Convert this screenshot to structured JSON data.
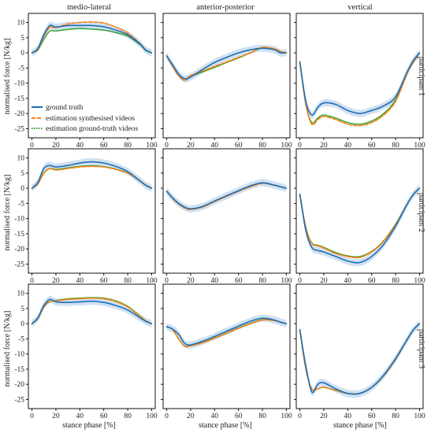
{
  "chart_data": {
    "type": "line",
    "column_titles": [
      "medio-lateral",
      "anterior-posterior",
      "vertical"
    ],
    "row_labels": [
      "participant 1",
      "participant 2",
      "participant 3"
    ],
    "xlabel": "stance phase [%]",
    "ylabel": "normalised force [N/kg]",
    "xlim": [
      -3,
      103
    ],
    "ylim": [
      -28,
      13
    ],
    "xticks": [
      0,
      20,
      40,
      60,
      80,
      100
    ],
    "yticks": [
      10,
      5,
      0,
      -5,
      -10,
      -15,
      -20,
      -25
    ],
    "grid": false,
    "legend": {
      "placement": "left-center of top-left panel",
      "entries": [
        "ground truth",
        "estimation synthesised videos",
        "estimation ground-truth videos"
      ]
    },
    "colors": {
      "ground truth": "#1f6eb4",
      "estimation synthesised videos": "#ff7f0e",
      "estimation ground-truth videos": "#2ca02c",
      "band": "#a9c9e8"
    },
    "x": [
      0,
      5,
      10,
      15,
      20,
      30,
      40,
      50,
      60,
      70,
      80,
      90,
      95,
      100
    ],
    "panels": [
      {
        "row": 1,
        "col": "medio-lateral",
        "series": [
          {
            "name": "ground truth",
            "values": [
              0,
              1.5,
              6,
              9,
              8.5,
              9,
              9,
              9,
              8.6,
              7.5,
              6,
              3,
              1,
              0
            ]
          },
          {
            "name": "estimation synthesised videos",
            "values": [
              0,
              1.2,
              5.5,
              8.4,
              8.3,
              9.5,
              10,
              10.2,
              9.8,
              8.5,
              6.5,
              3.2,
              1,
              0
            ]
          },
          {
            "name": "estimation ground-truth videos",
            "values": [
              0,
              1,
              4.5,
              7.2,
              7.2,
              7.7,
              8,
              7.8,
              7.5,
              6.7,
              5.5,
              2.8,
              0.8,
              0
            ]
          }
        ]
      },
      {
        "row": 1,
        "col": "anterior-posterior",
        "series": [
          {
            "name": "ground truth",
            "values": [
              -1,
              -4,
              -7,
              -8.5,
              -8,
              -5.5,
              -3.2,
              -1.5,
              0,
              1,
              1.5,
              1,
              0,
              0
            ]
          },
          {
            "name": "estimation synthesised videos",
            "values": [
              -1,
              -4.5,
              -7.5,
              -9,
              -7.5,
              -6,
              -4.5,
              -3,
              -1.5,
              0,
              1.8,
              1.3,
              0.5,
              0
            ]
          },
          {
            "name": "estimation ground-truth videos",
            "values": [
              -1,
              -4.5,
              -7.5,
              -9,
              -7.8,
              -6.3,
              -4.8,
              -3.2,
              -1.7,
              0,
              1.6,
              1.2,
              0.4,
              0
            ]
          }
        ]
      },
      {
        "row": 1,
        "col": "vertical",
        "series": [
          {
            "name": "ground truth",
            "values": [
              -3,
              -16,
              -20.5,
              -18,
              -16.5,
              -17,
              -19,
              -20,
              -19,
              -17.5,
              -14.5,
              -6,
              -2.5,
              0
            ]
          },
          {
            "name": "estimation synthesised videos",
            "values": [
              -3,
              -17,
              -23.5,
              -22,
              -21,
              -22,
              -23.5,
              -24,
              -23,
              -20.5,
              -16,
              -6.5,
              -3,
              0
            ]
          },
          {
            "name": "estimation ground-truth videos",
            "values": [
              -3,
              -17,
              -23,
              -21.5,
              -20.5,
              -21.5,
              -23,
              -23.5,
              -22.5,
              -20,
              -15.5,
              -6.5,
              -3,
              0
            ]
          }
        ]
      },
      {
        "row": 2,
        "col": "medio-lateral",
        "series": [
          {
            "name": "ground truth",
            "values": [
              0,
              2,
              6.5,
              7.5,
              7,
              7.5,
              8.3,
              8.7,
              8.3,
              7.2,
              5.5,
              2.5,
              1,
              0
            ]
          },
          {
            "name": "estimation synthesised videos",
            "values": [
              0,
              1.5,
              5,
              6.5,
              6,
              6.5,
              7,
              7.2,
              7,
              6.2,
              5,
              2.5,
              1,
              0
            ]
          },
          {
            "name": "estimation ground-truth videos",
            "values": [
              0,
              1.5,
              5,
              6.5,
              6.2,
              6.7,
              7.2,
              7.4,
              7.1,
              6.3,
              5,
              2.5,
              1,
              0
            ]
          }
        ]
      },
      {
        "row": 2,
        "col": "anterior-posterior",
        "series": [
          {
            "name": "ground truth",
            "values": [
              -1,
              -3.2,
              -5,
              -6.2,
              -6.8,
              -6,
              -4.2,
              -2.5,
              -0.8,
              0.8,
              1.8,
              1,
              0.5,
              0
            ]
          },
          {
            "name": "estimation synthesised videos",
            "values": [
              -1,
              -3.4,
              -5.2,
              -6.5,
              -7,
              -6.2,
              -4.4,
              -2.7,
              -1,
              0.5,
              1.6,
              1,
              0.5,
              0
            ]
          },
          {
            "name": "estimation ground-truth videos",
            "values": [
              -1,
              -3.3,
              -5.1,
              -6.4,
              -6.9,
              -6.1,
              -4.3,
              -2.6,
              -0.9,
              0.6,
              1.7,
              1,
              0.5,
              0
            ]
          }
        ]
      },
      {
        "row": 2,
        "col": "vertical",
        "series": [
          {
            "name": "ground truth",
            "values": [
              -2,
              -14,
              -19.5,
              -20.5,
              -21,
              -22.5,
              -24,
              -24.5,
              -22.5,
              -18.5,
              -12.5,
              -5,
              -2,
              0
            ]
          },
          {
            "name": "estimation synthesised videos",
            "values": [
              -2,
              -13,
              -18.2,
              -19,
              -19.7,
              -21.5,
              -22.5,
              -22.8,
              -21,
              -17.5,
              -12,
              -5,
              -2,
              0
            ]
          },
          {
            "name": "estimation ground-truth videos",
            "values": [
              -2,
              -13,
              -18,
              -18.8,
              -19.5,
              -21.2,
              -22.3,
              -22.5,
              -20.8,
              -17.3,
              -11.8,
              -5,
              -2,
              0
            ]
          }
        ]
      },
      {
        "row": 3,
        "col": "medio-lateral",
        "series": [
          {
            "name": "ground truth",
            "values": [
              0,
              2,
              6,
              8,
              7.2,
              7,
              7.2,
              7.4,
              7,
              6,
              4.5,
              2,
              0.8,
              0
            ]
          },
          {
            "name": "estimation synthesised videos",
            "values": [
              0,
              1.7,
              5.5,
              7.3,
              7.5,
              8,
              8.2,
              8.4,
              8.2,
              7.3,
              5.5,
              2.5,
              1,
              0
            ]
          },
          {
            "name": "estimation ground-truth videos",
            "values": [
              0,
              1.7,
              5.5,
              7.3,
              7.6,
              8.2,
              8.4,
              8.6,
              8.4,
              7.5,
              5.7,
              2.6,
              1,
              0
            ]
          }
        ]
      },
      {
        "row": 3,
        "col": "anterior-posterior",
        "series": [
          {
            "name": "ground truth",
            "values": [
              -1,
              -1.8,
              -3.5,
              -6.5,
              -7,
              -5.8,
              -4.2,
              -2.5,
              -0.8,
              0.8,
              1.8,
              1.2,
              0.5,
              0
            ]
          },
          {
            "name": "estimation synthesised videos",
            "values": [
              -1,
              -2,
              -5,
              -7.5,
              -7.3,
              -6.3,
              -4.8,
              -3.2,
              -1.5,
              0,
              1.2,
              1,
              0.5,
              0
            ]
          },
          {
            "name": "estimation ground-truth videos",
            "values": [
              -1,
              -2,
              -5,
              -7.4,
              -7.2,
              -6.2,
              -4.7,
              -3.1,
              -1.4,
              0.1,
              1.3,
              1,
              0.5,
              0
            ]
          }
        ]
      },
      {
        "row": 3,
        "col": "vertical",
        "series": [
          {
            "name": "ground truth",
            "values": [
              -2,
              -14,
              -22.5,
              -20,
              -19.5,
              -21.5,
              -23,
              -23,
              -21,
              -17,
              -11.5,
              -5,
              -2,
              0
            ]
          },
          {
            "name": "estimation synthesised videos",
            "values": [
              -2,
              -15,
              -21.5,
              -21.5,
              -21,
              -22,
              -23,
              -23,
              -21,
              -17.2,
              -11.8,
              -5,
              -2,
              0
            ]
          },
          {
            "name": "estimation ground-truth videos",
            "values": [
              -2,
              -15,
              -21.5,
              -21.5,
              -21,
              -22,
              -23,
              -23,
              -21,
              -17.2,
              -11.8,
              -5,
              -2,
              0
            ]
          }
        ]
      }
    ]
  }
}
